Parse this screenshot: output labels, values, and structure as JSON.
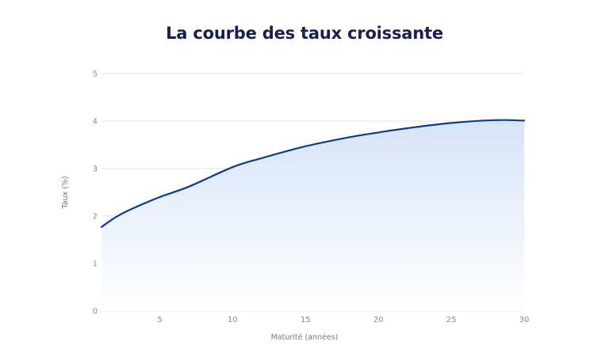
{
  "chart_data": {
    "type": "area",
    "title": "La courbe des taux croissante",
    "xlabel": "Maturité (années)",
    "ylabel": "Taux (%)",
    "x_ticks": [
      5,
      10,
      15,
      20,
      25,
      30
    ],
    "y_ticks": [
      0,
      1,
      2,
      3,
      4,
      5
    ],
    "xlim": [
      1,
      30
    ],
    "ylim": [
      0,
      5
    ],
    "grid": "horizontal",
    "legend": null,
    "series": [
      {
        "name": "Taux",
        "x": [
          1,
          2,
          3,
          5,
          7,
          10,
          12,
          15,
          18,
          20,
          22,
          25,
          28,
          30
        ],
        "values": [
          1.77,
          1.98,
          2.14,
          2.4,
          2.62,
          3.03,
          3.22,
          3.47,
          3.66,
          3.76,
          3.85,
          3.96,
          4.02,
          4.01
        ]
      }
    ],
    "colors": {
      "line": "#0d3b8f",
      "fill_top": "#d6e4f7",
      "fill_bottom": "#ffffff",
      "grid": "#e3e3e3"
    }
  }
}
